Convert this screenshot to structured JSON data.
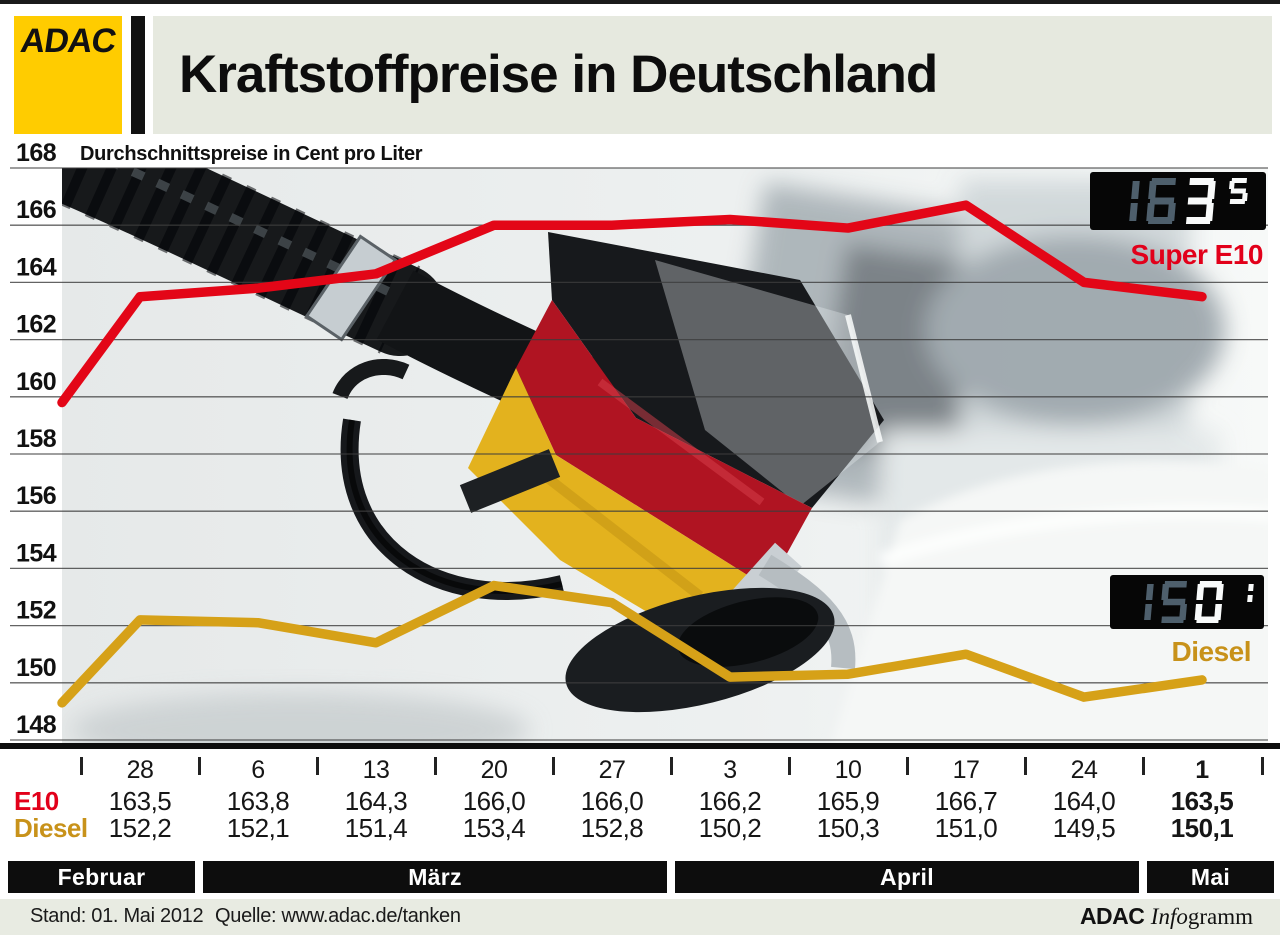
{
  "page": {
    "logo": "ADAC",
    "title": "Kraftstoffpreise in Deutschland",
    "subtitle": "Durchschnittspreise in Cent pro Liter"
  },
  "displays": [
    {
      "digits": "163",
      "superscript": "5",
      "dim_digits": 2,
      "label": "Super E10",
      "label_color": "#e2001a"
    },
    {
      "digits": "150",
      "superscript": "1",
      "dim_digits": 2,
      "label": "Diesel",
      "label_color": "#c8921a"
    }
  ],
  "chart_data": {
    "type": "line",
    "title": "Kraftstoffpreise in Deutschland",
    "subtitle": "Durchschnittspreise in Cent pro Liter",
    "ylabel": "Cent pro Liter",
    "ylim": [
      148,
      168
    ],
    "y_ticks": [
      168,
      166,
      164,
      162,
      160,
      158,
      156,
      154,
      152,
      150,
      148
    ],
    "grid": true,
    "categories": [
      "28",
      "6",
      "13",
      "20",
      "27",
      "3",
      "10",
      "17",
      "24",
      "1"
    ],
    "month_groups": [
      {
        "label": "Februar",
        "from": 0,
        "to": 0
      },
      {
        "label": "März",
        "from": 1,
        "to": 4
      },
      {
        "label": "April",
        "from": 5,
        "to": 8
      },
      {
        "label": "Mai",
        "from": 9,
        "to": 9
      }
    ],
    "series": [
      {
        "name": "E10",
        "color": "#e30617",
        "label_color": "#e2001a",
        "values": [
          163.5,
          163.8,
          164.3,
          166.0,
          166.0,
          166.2,
          165.9,
          166.7,
          164.0,
          163.5
        ],
        "lead_in_value": 159.8
      },
      {
        "name": "Diesel",
        "color": "#d6a118",
        "label_color": "#c8921a",
        "values": [
          152.2,
          152.1,
          151.4,
          153.4,
          152.8,
          150.2,
          150.3,
          151.0,
          149.5,
          150.1
        ],
        "lead_in_value": 149.3
      }
    ],
    "emphasized_column": 9,
    "legend_position": "right-on-chart"
  },
  "footer": {
    "stand": "Stand: 01. Mai 2012",
    "quelle": "Quelle: www.adac.de/tanken",
    "credit_bold": "ADAC",
    "credit_italic": "Info",
    "credit_rest": "gramm"
  }
}
